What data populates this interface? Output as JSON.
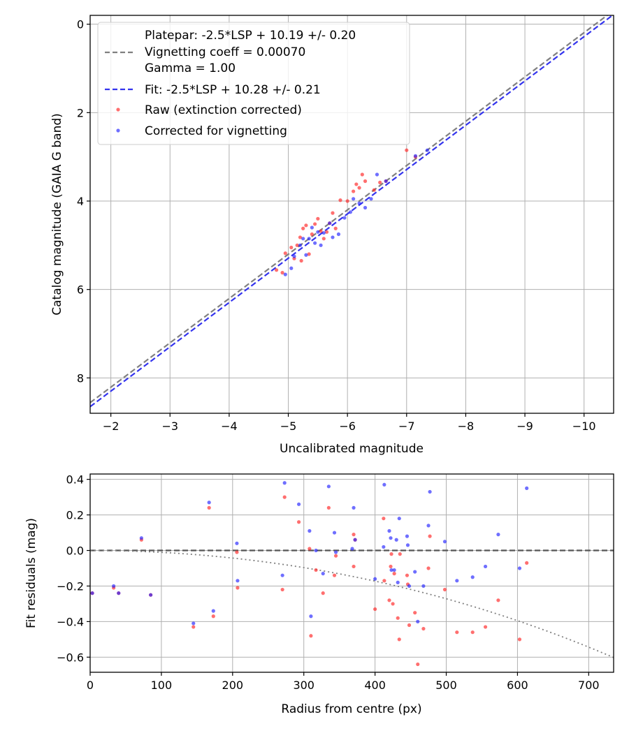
{
  "chart_data": [
    {
      "type": "scatter",
      "xlabel": "Uncalibrated magnitude",
      "ylabel": "Catalog magnitude (GAIA G band)",
      "xlim": [
        -1.65,
        -10.5
      ],
      "ylim": [
        8.8,
        -0.2
      ],
      "x_ticks": [
        -2,
        -3,
        -4,
        -5,
        -6,
        -7,
        -8,
        -9,
        -10
      ],
      "x_tick_labels": [
        "−2",
        "−3",
        "−4",
        "−5",
        "−6",
        "−7",
        "−8",
        "−9",
        "−10"
      ],
      "y_ticks": [
        0,
        2,
        4,
        6,
        8
      ],
      "y_tick_labels": [
        "0",
        "2",
        "4",
        "6",
        "8"
      ],
      "grid": true,
      "legend": {
        "position": "top-left",
        "entries": [
          {
            "label": "Platepar: -2.5*LSP + 10.19 +/- 0.20",
            "kind": "none"
          },
          {
            "label": "Vignetting coeff = 0.00070",
            "kind": "dash",
            "color": "#808080"
          },
          {
            "label": "Gamma = 1.00",
            "kind": "none"
          },
          {
            "label": "Fit: -2.5*LSP + 10.28 +/- 0.21",
            "kind": "dash",
            "color": "#3333ee"
          },
          {
            "label": "Raw (extinction corrected)",
            "kind": "dot",
            "color": "#ff2222"
          },
          {
            "label": "Corrected for vignetting",
            "kind": "dot",
            "color": "#2222ff"
          }
        ]
      },
      "lines": [
        {
          "name": "Platepar",
          "color": "#808080",
          "style": "dashed",
          "points": [
            [
              -1.65,
              8.56
            ],
            [
              -10.5,
              -0.31
            ]
          ]
        },
        {
          "name": "Fit",
          "color": "#3333ee",
          "style": "dashed",
          "points": [
            [
              -1.65,
              8.65
            ],
            [
              -10.5,
              -0.22
            ]
          ]
        }
      ],
      "series": [
        {
          "name": "Raw (extinction corrected)",
          "color": "#ff2222",
          "points": [
            [
              -4.8,
              5.56
            ],
            [
              -4.9,
              5.62
            ],
            [
              -4.95,
              5.18
            ],
            [
              -5.05,
              5.05
            ],
            [
              -5.1,
              5.3
            ],
            [
              -5.15,
              5.0
            ],
            [
              -5.2,
              4.82
            ],
            [
              -5.22,
              5.35
            ],
            [
              -5.25,
              4.62
            ],
            [
              -5.3,
              4.55
            ],
            [
              -5.35,
              5.2
            ],
            [
              -5.4,
              4.75
            ],
            [
              -5.45,
              4.52
            ],
            [
              -5.5,
              4.4
            ],
            [
              -5.55,
              4.68
            ],
            [
              -5.6,
              4.85
            ],
            [
              -5.65,
              4.7
            ],
            [
              -5.7,
              4.5
            ],
            [
              -5.75,
              4.27
            ],
            [
              -5.8,
              4.62
            ],
            [
              -5.88,
              3.98
            ],
            [
              -6.0,
              4.0
            ],
            [
              -6.1,
              3.78
            ],
            [
              -6.15,
              3.62
            ],
            [
              -6.2,
              3.7
            ],
            [
              -6.25,
              3.4
            ],
            [
              -6.3,
              3.55
            ],
            [
              -6.45,
              3.75
            ],
            [
              -6.55,
              3.58
            ],
            [
              -6.65,
              3.55
            ],
            [
              -7.0,
              2.85
            ],
            [
              -7.15,
              3.0
            ]
          ]
        },
        {
          "name": "Corrected for vignetting",
          "color": "#2222ff",
          "points": [
            [
              -4.95,
              5.66
            ],
            [
              -5.05,
              5.52
            ],
            [
              -5.1,
              5.25
            ],
            [
              -5.2,
              5.0
            ],
            [
              -5.25,
              4.85
            ],
            [
              -5.3,
              5.22
            ],
            [
              -5.35,
              4.85
            ],
            [
              -5.4,
              4.6
            ],
            [
              -5.45,
              4.95
            ],
            [
              -5.5,
              4.7
            ],
            [
              -5.55,
              5.0
            ],
            [
              -5.6,
              4.72
            ],
            [
              -5.7,
              4.5
            ],
            [
              -5.75,
              4.82
            ],
            [
              -5.85,
              4.75
            ],
            [
              -5.95,
              4.38
            ],
            [
              -6.05,
              4.25
            ],
            [
              -6.1,
              3.95
            ],
            [
              -6.2,
              4.05
            ],
            [
              -6.3,
              4.15
            ],
            [
              -6.4,
              3.95
            ],
            [
              -6.5,
              3.4
            ],
            [
              -6.65,
              3.55
            ],
            [
              -7.15,
              2.98
            ],
            [
              -7.35,
              2.85
            ]
          ]
        }
      ]
    },
    {
      "type": "scatter",
      "xlabel": "Radius from centre (px)",
      "ylabel": "Fit residuals (mag)",
      "xlim": [
        0,
        735
      ],
      "ylim": [
        -0.685,
        0.43
      ],
      "x_ticks": [
        0,
        100,
        200,
        300,
        400,
        500,
        600,
        700
      ],
      "x_tick_labels": [
        "0",
        "100",
        "200",
        "300",
        "400",
        "500",
        "600",
        "700"
      ],
      "y_ticks": [
        0.4,
        0.2,
        0.0,
        -0.2,
        -0.4,
        -0.6
      ],
      "y_tick_labels": [
        "0.4",
        "0.2",
        "0.0",
        "−0.2",
        "−0.4",
        "−0.6"
      ],
      "grid": true,
      "lines": [
        {
          "name": "zero",
          "color": "#555555",
          "style": "dashed",
          "function": "zero"
        },
        {
          "name": "vignetting",
          "color": "#808080",
          "style": "dotted",
          "function": "vignetting",
          "coeff": 0.0007
        }
      ],
      "series": [
        {
          "name": "Raw (extinction corrected)",
          "color": "#ff2222",
          "points": [
            [
              3,
              -0.24
            ],
            [
              33,
              -0.21
            ],
            [
              40,
              -0.24
            ],
            [
              72,
              0.06
            ],
            [
              85,
              -0.25
            ],
            [
              145,
              -0.43
            ],
            [
              167,
              0.24
            ],
            [
              173,
              -0.37
            ],
            [
              206,
              -0.01
            ],
            [
              207,
              -0.21
            ],
            [
              270,
              -0.22
            ],
            [
              273,
              0.3
            ],
            [
              293,
              0.16
            ],
            [
              308,
              0.01
            ],
            [
              310,
              -0.48
            ],
            [
              317,
              -0.11
            ],
            [
              327,
              -0.24
            ],
            [
              335,
              0.24
            ],
            [
              343,
              -0.14
            ],
            [
              345,
              -0.03
            ],
            [
              370,
              0.09
            ],
            [
              370,
              -0.09
            ],
            [
              372,
              0.06
            ],
            [
              400,
              -0.33
            ],
            [
              412,
              0.18
            ],
            [
              413,
              -0.17
            ],
            [
              420,
              -0.28
            ],
            [
              422,
              -0.09
            ],
            [
              423,
              -0.02
            ],
            [
              425,
              -0.3
            ],
            [
              427,
              -0.13
            ],
            [
              432,
              -0.38
            ],
            [
              434,
              -0.5
            ],
            [
              435,
              -0.02
            ],
            [
              445,
              -0.14
            ],
            [
              446,
              -0.19
            ],
            [
              448,
              -0.42
            ],
            [
              456,
              -0.35
            ],
            [
              460,
              -0.64
            ],
            [
              468,
              -0.44
            ],
            [
              475,
              -0.1
            ],
            [
              477,
              0.08
            ],
            [
              498,
              -0.22
            ],
            [
              515,
              -0.46
            ],
            [
              537,
              -0.46
            ],
            [
              555,
              -0.43
            ],
            [
              573,
              -0.28
            ],
            [
              603,
              -0.5
            ],
            [
              613,
              -0.07
            ]
          ]
        },
        {
          "name": "Corrected for vignetting",
          "color": "#2222ff",
          "points": [
            [
              3,
              -0.24
            ],
            [
              33,
              -0.2
            ],
            [
              40,
              -0.24
            ],
            [
              72,
              0.07
            ],
            [
              85,
              -0.25
            ],
            [
              145,
              -0.41
            ],
            [
              167,
              0.27
            ],
            [
              173,
              -0.34
            ],
            [
              206,
              0.04
            ],
            [
              207,
              -0.17
            ],
            [
              270,
              -0.14
            ],
            [
              273,
              0.38
            ],
            [
              293,
              0.26
            ],
            [
              308,
              0.11
            ],
            [
              310,
              -0.37
            ],
            [
              317,
              0.0
            ],
            [
              327,
              -0.13
            ],
            [
              335,
              0.36
            ],
            [
              343,
              0.1
            ],
            [
              345,
              -0.01
            ],
            [
              368,
              0.01
            ],
            [
              370,
              0.24
            ],
            [
              372,
              0.06
            ],
            [
              400,
              -0.16
            ],
            [
              412,
              0.02
            ],
            [
              413,
              0.37
            ],
            [
              420,
              0.11
            ],
            [
              422,
              0.07
            ],
            [
              423,
              -0.11
            ],
            [
              427,
              -0.11
            ],
            [
              430,
              0.06
            ],
            [
              432,
              -0.18
            ],
            [
              434,
              0.18
            ],
            [
              445,
              0.08
            ],
            [
              446,
              0.03
            ],
            [
              448,
              -0.2
            ],
            [
              456,
              -0.12
            ],
            [
              460,
              -0.4
            ],
            [
              468,
              -0.2
            ],
            [
              475,
              0.14
            ],
            [
              477,
              0.33
            ],
            [
              498,
              0.05
            ],
            [
              515,
              -0.17
            ],
            [
              537,
              -0.15
            ],
            [
              555,
              -0.09
            ],
            [
              573,
              0.09
            ],
            [
              603,
              -0.1
            ],
            [
              613,
              0.35
            ]
          ]
        }
      ]
    }
  ]
}
